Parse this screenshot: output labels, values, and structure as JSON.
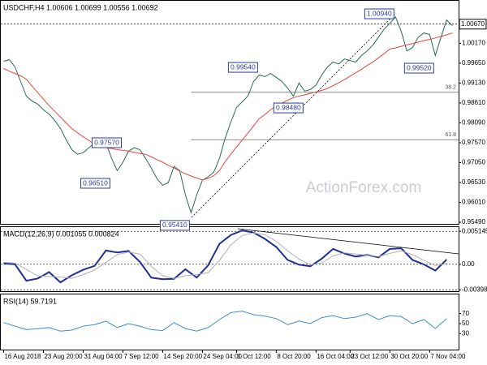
{
  "chart_data": [
    {
      "type": "line",
      "title": "USDCHF,H4 1.00606 1.00699 1.00556 1.00692",
      "x": [
        0,
        1,
        2,
        3,
        4,
        5,
        6,
        7,
        8,
        9,
        10,
        11,
        12,
        13,
        14,
        15,
        16,
        17,
        18,
        19,
        20,
        21,
        22,
        23,
        24,
        25,
        26,
        27,
        28,
        29,
        30,
        31,
        32,
        33,
        34,
        35,
        36,
        37,
        38,
        39,
        40,
        41,
        42,
        43,
        44,
        45,
        46,
        47,
        48,
        49,
        50,
        51,
        52,
        53,
        54,
        55,
        56,
        57,
        58,
        59,
        60,
        61,
        62,
        63,
        64,
        65,
        66,
        67,
        68,
        69,
        70,
        71,
        72,
        73,
        74,
        75,
        76,
        77,
        78,
        79
      ],
      "series": [
        {
          "color": "#2a6a5a",
          "values": [
            0.997,
            0.9974,
            0.9955,
            0.9917,
            0.9879,
            0.9866,
            0.9858,
            0.9843,
            0.9832,
            0.9815,
            0.9794,
            0.9765,
            0.9739,
            0.9727,
            0.9731,
            0.9744,
            0.9756,
            0.9765,
            0.9756,
            0.9716,
            0.9684,
            0.9706,
            0.9735,
            0.9744,
            0.9739,
            0.9716,
            0.9691,
            0.9663,
            0.9646,
            0.9653,
            0.9695,
            0.9684,
            0.9621,
            0.9574,
            0.9621,
            0.9659,
            0.9668,
            0.968,
            0.9716,
            0.9769,
            0.9811,
            0.9849,
            0.9864,
            0.9879,
            0.9917,
            0.9934,
            0.993,
            0.9938,
            0.9928,
            0.9917,
            0.99,
            0.9879,
            0.9913,
            0.9892,
            0.9896,
            0.9908,
            0.9934,
            0.9955,
            0.9968,
            0.9963,
            0.9976,
            0.9972,
            0.9968,
            0.9985,
            0.9997,
            1.0012,
            1.0033,
            1.0054,
            1.0069,
            1.0086,
            1.0048,
            0.9997,
            1.0006,
            1.0033,
            1.0044,
            1.004,
            0.9985,
            1.0033,
            1.0078,
            1.0063
          ]
        },
        {
          "color": "#e8463a",
          "values": [
            0.9951,
            0.9944,
            0.9938,
            0.9932,
            0.9923,
            0.9905,
            0.9888,
            0.9871,
            0.9854,
            0.9839,
            0.9824,
            0.9809,
            0.9794,
            0.9783,
            0.9773,
            0.9763,
            0.9754,
            0.9747,
            0.9744,
            0.9742,
            0.9739,
            0.9737,
            0.9735,
            0.9732,
            0.9729,
            0.9727,
            0.972,
            0.9713,
            0.9706,
            0.9698,
            0.9691,
            0.9683,
            0.9676,
            0.967,
            0.9665,
            0.966,
            0.9664,
            0.9671,
            0.9684,
            0.9708,
            0.9727,
            0.9746,
            0.9764,
            0.9782,
            0.9801,
            0.982,
            0.9831,
            0.9843,
            0.9854,
            0.9861,
            0.9868,
            0.9875,
            0.9879,
            0.9882,
            0.9886,
            0.989,
            0.9894,
            0.9899,
            0.9906,
            0.9914,
            0.9922,
            0.9931,
            0.994,
            0.9949,
            0.9959,
            0.9968,
            0.9979,
            0.999,
            1.0002,
            1.0005,
            1.0009,
            1.0013,
            1.0016,
            1.002,
            1.0024,
            1.0027,
            1.0031,
            1.0035,
            1.0039,
            1.0044
          ]
        }
      ],
      "xlim": [
        -0.5,
        80.1
      ],
      "ylim": [
        0.9545,
        1.0128
      ],
      "yticks": [
        {
          "value": 1.0017,
          "label": "1.00170"
        },
        {
          "value": 0.9965,
          "label": "0.99650"
        },
        {
          "value": 0.9913,
          "label": "0.99130"
        },
        {
          "value": 0.9861,
          "label": "0.98610"
        },
        {
          "value": 0.9809,
          "label": "0.98090"
        },
        {
          "value": 0.9757,
          "label": "0.97570"
        },
        {
          "value": 0.9705,
          "label": "0.97050"
        },
        {
          "value": 0.9653,
          "label": "0.96530"
        },
        {
          "value": 0.9601,
          "label": "0.96010"
        },
        {
          "value": 0.9549,
          "label": "0.95490"
        }
      ],
      "grid": false,
      "current_price": {
        "value": 1.0067,
        "label": "1.00670"
      },
      "annotations": [
        {
          "x": 69,
          "value": 1.0094,
          "label": "1.00940"
        },
        {
          "x": 45,
          "value": 0.9954,
          "label": "0.99540"
        },
        {
          "x": 53,
          "value": 0.9848,
          "label": "0.98480"
        },
        {
          "x": 76,
          "value": 0.9952,
          "label": "0.99520"
        },
        {
          "x": 21,
          "value": 0.9757,
          "label": "0.97570"
        },
        {
          "x": 19,
          "value": 0.9651,
          "label": "0.96510"
        },
        {
          "x": 33,
          "value": 0.9541,
          "label": "0.95410"
        }
      ],
      "fib_levels": [
        {
          "x": 33,
          "value": 0.9889,
          "label": "38.2"
        },
        {
          "x": 33,
          "value": 0.9765,
          "label": "61.8"
        }
      ],
      "watermark": "ActionForex.com"
    },
    {
      "type": "line",
      "title": "MACD(12,26,9) 0.001055 0.000824",
      "x": [
        0,
        2,
        4,
        6,
        8,
        10,
        12,
        14,
        16,
        18,
        20,
        22,
        24,
        26,
        28,
        30,
        32,
        34,
        36,
        38,
        40,
        42,
        44,
        46,
        48,
        50,
        52,
        54,
        56,
        58,
        60,
        62,
        64,
        66,
        68,
        70,
        72,
        74,
        76,
        78
      ],
      "series": [
        {
          "color": "#1f2f94",
          "values": [
            0.00012,
            0,
            -0.00257,
            -0.00221,
            -0.00123,
            -0.00282,
            -0.00172,
            -0.00086,
            -0.00025,
            0.00214,
            0.00184,
            0.00208,
            0.00037,
            -0.00208,
            -0.00233,
            -0.00227,
            -0.00078,
            -0.00207,
            -0.00018,
            0.00319,
            0.00457,
            0.00528,
            0.00494,
            0.00396,
            0.0027,
            0.00066,
            -6e-05,
            -0.00032,
            0.00088,
            0.00239,
            0.00169,
            0.0012,
            0.00146,
            0.00108,
            0.00239,
            0.00249,
            0.00066,
            -2e-05,
            -0.00098,
            0.00074
          ]
        },
        {
          "color": "#b0b0b0",
          "values": [
            0.0003,
            0.0002,
            -0.0008,
            -0.0018,
            -0.0019,
            -0.002,
            -0.0022,
            -0.0016,
            -0.0009,
            0.0003,
            0.0015,
            0.0019,
            0.0016,
            -0.0003,
            -0.0018,
            -0.0022,
            -0.0018,
            -0.0016,
            -0.0013,
            0.0006,
            0.003,
            0.0045,
            0.0049,
            0.0046,
            0.0036,
            0.0021,
            0.0008,
            -0.0001,
            0.0002,
            0.0013,
            0.0018,
            0.0016,
            0.0014,
            0.0012,
            0.0017,
            0.0021,
            0.0015,
            0.0006,
            -0.0002,
            0.0001
          ]
        }
      ],
      "xlim": [
        -0.5,
        80.1
      ],
      "ylim": [
        -0.0042,
        0.0058
      ],
      "yticks": [
        0.005145,
        {
          "value": 0,
          "label": "0.00"
        },
        -0.003989
      ],
      "grid": true
    },
    {
      "type": "line",
      "title": "RSI(14) 59.7191",
      "x": [
        0,
        2,
        4,
        6,
        8,
        10,
        12,
        14,
        16,
        18,
        20,
        22,
        24,
        26,
        28,
        30,
        32,
        34,
        36,
        38,
        40,
        42,
        44,
        46,
        48,
        50,
        52,
        54,
        56,
        58,
        60,
        62,
        64,
        66,
        68,
        70,
        72,
        74,
        76,
        78
      ],
      "series": [
        {
          "color": "#3a8fd8",
          "values": [
            52,
            45,
            38,
            40,
            42,
            35,
            37,
            45,
            48,
            55,
            42,
            50,
            45,
            38,
            36,
            52,
            40,
            35,
            42,
            58,
            72,
            75,
            68,
            65,
            60,
            48,
            55,
            50,
            62,
            66,
            60,
            63,
            70,
            58,
            66,
            64,
            50,
            58,
            40,
            60
          ]
        }
      ],
      "xlim": [
        -0.5,
        80.1
      ],
      "ylim": [
        -2,
        108.4
      ],
      "yticks": [
        70,
        50,
        30
      ],
      "grid": false,
      "xticks": [
        {
          "value": 0,
          "label": "16 Aug 2018"
        },
        {
          "value": 7,
          "label": "23 Aug 20:00"
        },
        {
          "value": 14,
          "label": "31 Aug 04:00"
        },
        {
          "value": 21,
          "label": "7 Sep 12:00"
        },
        {
          "value": 28,
          "label": "14 Sep 20:00"
        },
        {
          "value": 35,
          "label": "24 Sep 04:00"
        },
        {
          "value": 41,
          "label": "1 Oct 12:00"
        },
        {
          "value": 48,
          "label": "8 Oct 20:00"
        },
        {
          "value": 55,
          "label": "16 Oct 04:00"
        },
        {
          "value": 61,
          "label": "23 Oct 12:00"
        },
        {
          "value": 68,
          "label": "30 Oct 20:00"
        },
        {
          "value": 75,
          "label": "7 Nov 04:00"
        }
      ]
    }
  ]
}
